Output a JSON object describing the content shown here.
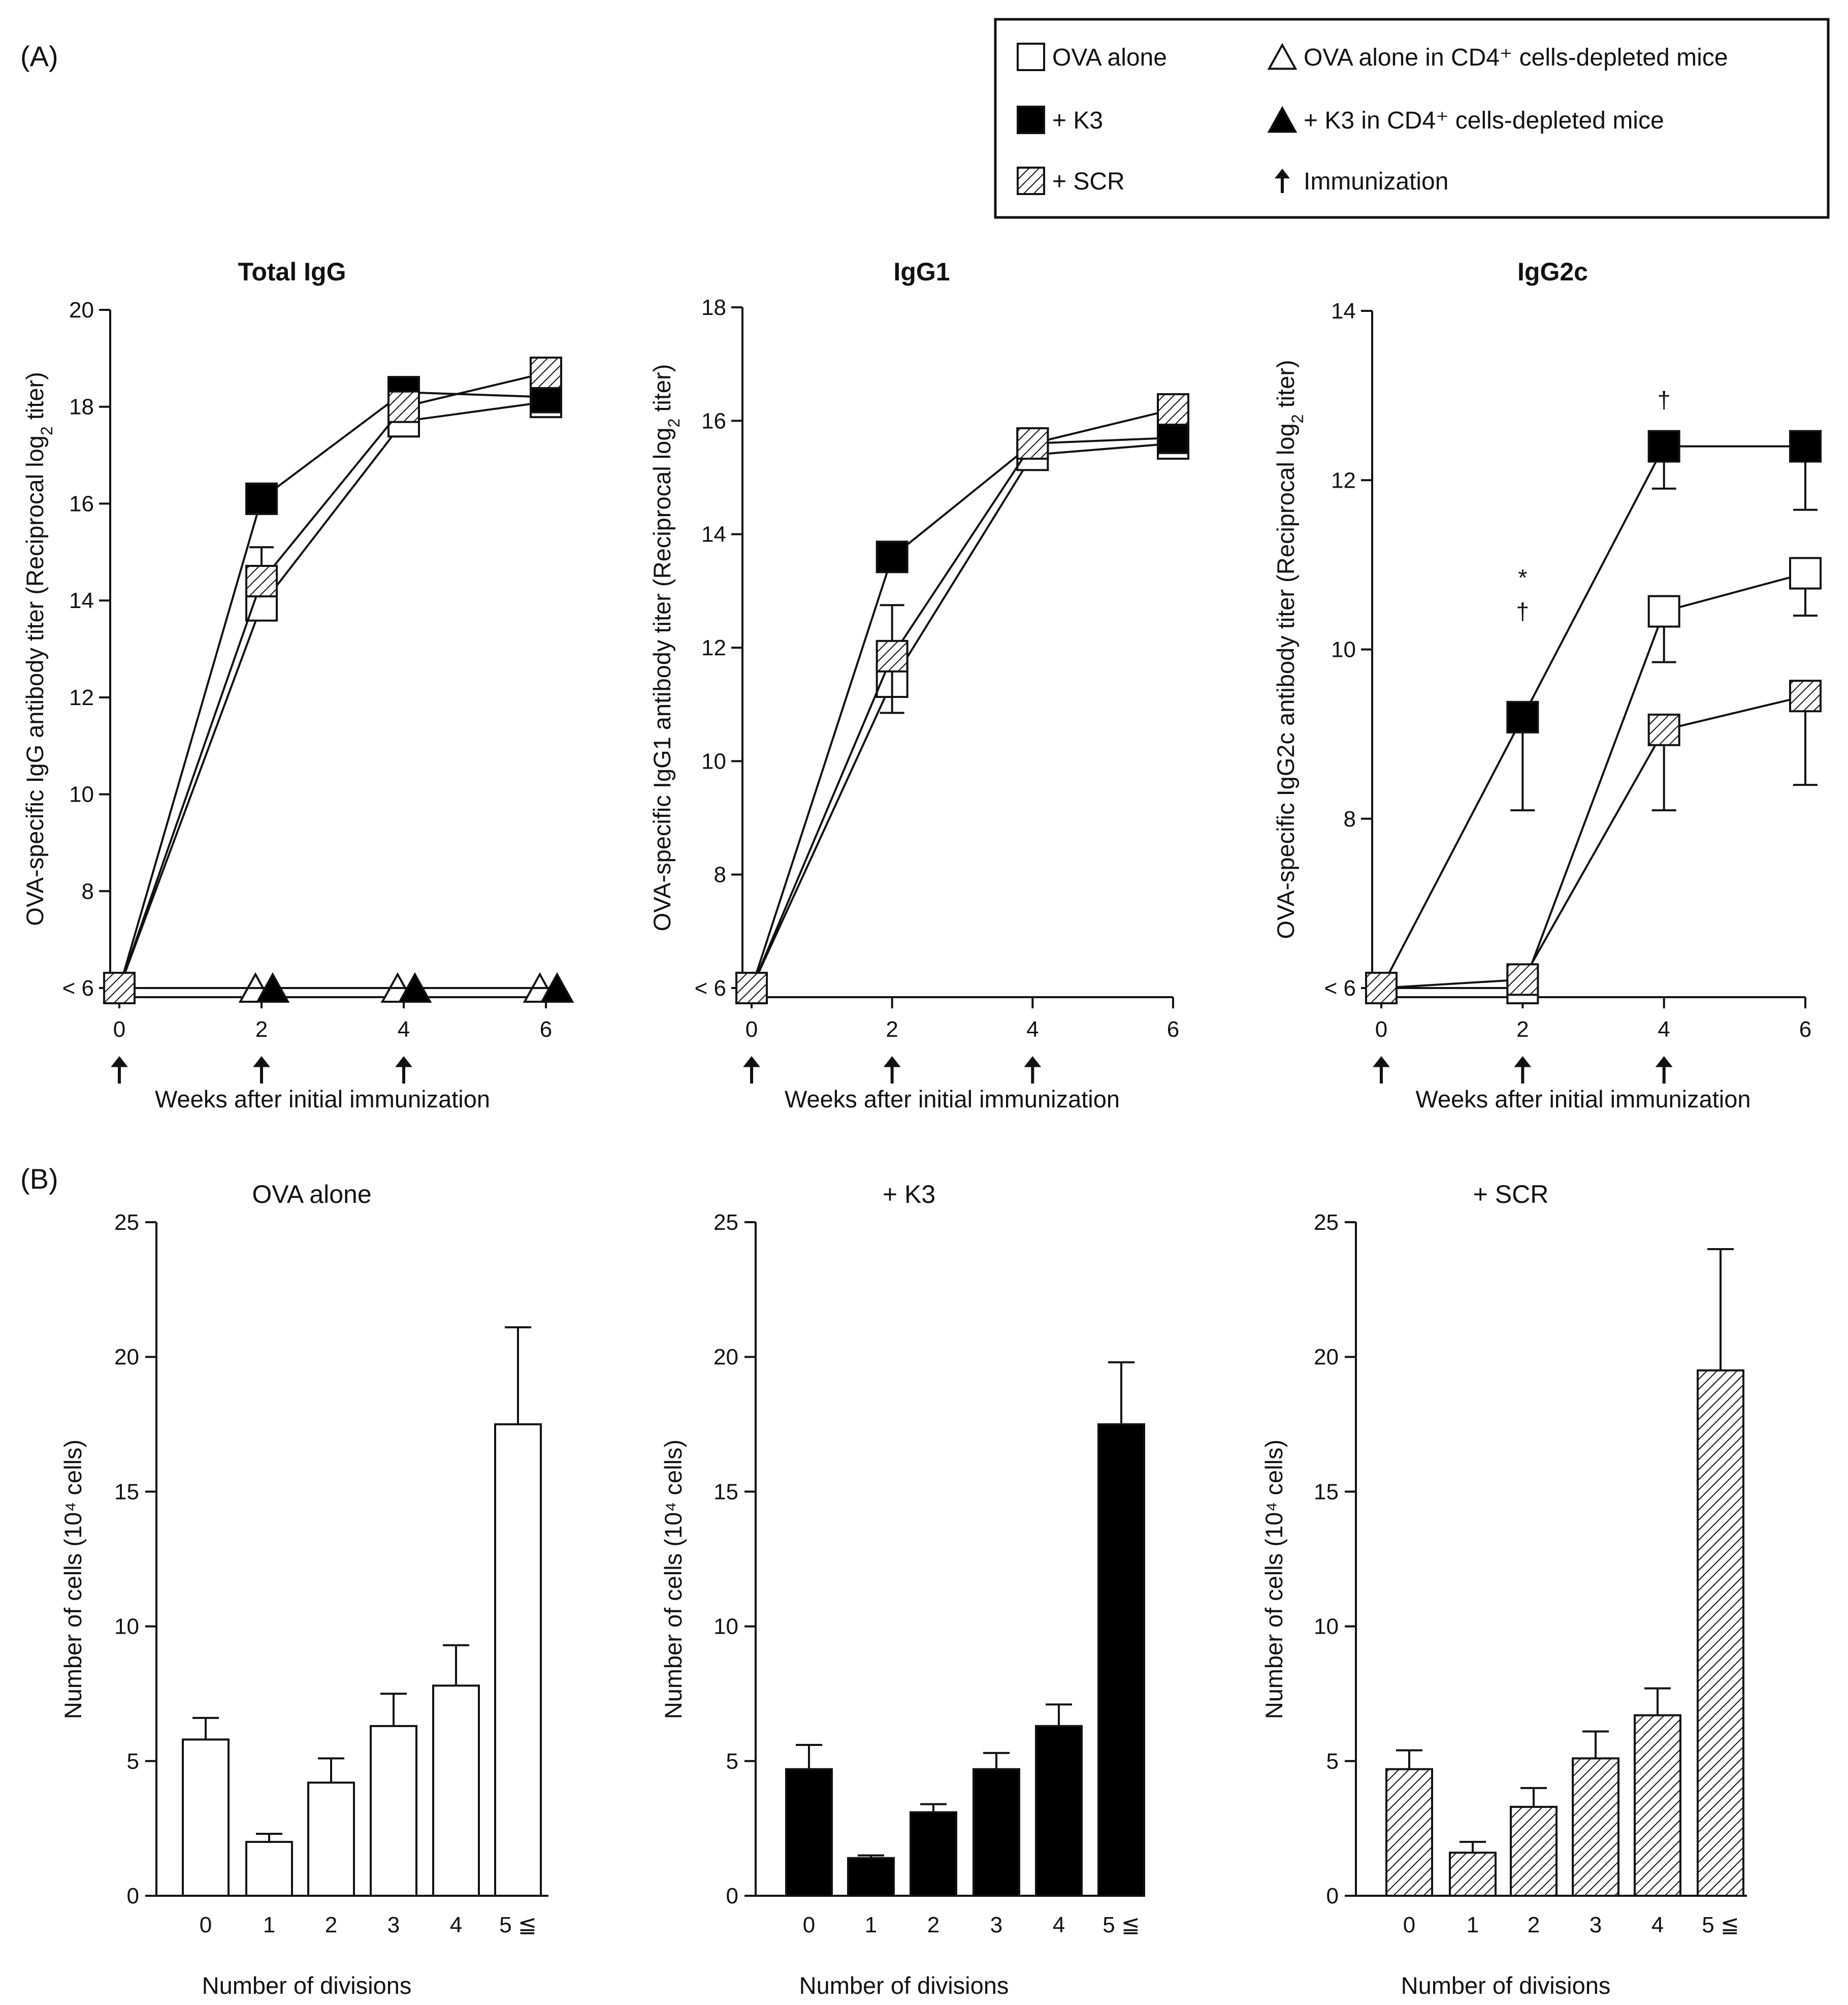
{
  "panel_a": {
    "letter": "(A)"
  },
  "panel_b": {
    "letter": "(B)"
  },
  "legend": {
    "items": [
      {
        "label": "OVA alone",
        "marker": "square-open"
      },
      {
        "label": "+ K3",
        "marker": "square-filled"
      },
      {
        "label": "+ SCR",
        "marker": "square-hatched"
      },
      {
        "label": "OVA alone  in  CD4⁺ cells-depleted  mice",
        "marker": "triangle-open"
      },
      {
        "label": "+ K3  in  CD4⁺ cells-depleted  mice",
        "marker": "triangle-filled"
      },
      {
        "label": "Immunization",
        "marker": "arrow-up"
      }
    ]
  },
  "colors": {
    "filled": "#000000",
    "open": "#ffffff",
    "ink": "#111111"
  },
  "chart_data": [
    {
      "type": "line",
      "title": "Total IgG",
      "xlabel": "Weeks after initial immunization",
      "ylabel": "OVA-specific IgG antibody titer (Reciprocal log2 titer)",
      "x": [
        0,
        2,
        4,
        6
      ],
      "xticks": [
        "0",
        "2",
        "4",
        "6"
      ],
      "xlim": [
        0,
        6
      ],
      "ylim": [
        6,
        20
      ],
      "yticks": [
        "< 6",
        "8",
        "10",
        "12",
        "14",
        "16",
        "18",
        "20"
      ],
      "immunization_weeks": [
        0,
        2,
        4
      ],
      "series": [
        {
          "name": "OVA alone",
          "marker": "square-open",
          "values": [
            6,
            13.9,
            17.7,
            18.1
          ],
          "errors": [
            0,
            1.2,
            0,
            0
          ]
        },
        {
          "name": "+ K3",
          "marker": "square-filled",
          "values": [
            6,
            16.1,
            18.3,
            18.2
          ],
          "errors": [
            0,
            0,
            0,
            0
          ]
        },
        {
          "name": "+ SCR",
          "marker": "square-hatched",
          "values": [
            6,
            14.4,
            18.0,
            18.7
          ],
          "errors": [
            0,
            0,
            0,
            0
          ]
        },
        {
          "name": "OVA alone in CD4+ cells-depleted mice",
          "marker": "triangle-open",
          "values": [
            6,
            6,
            6,
            6
          ],
          "errors": [
            0,
            0,
            0,
            0
          ]
        },
        {
          "name": "+ K3 in CD4+ cells-depleted mice",
          "marker": "triangle-filled",
          "values": [
            6,
            6,
            6,
            6
          ],
          "errors": [
            0,
            0,
            0,
            0
          ]
        }
      ],
      "annotations": []
    },
    {
      "type": "line",
      "title": "IgG1",
      "xlabel": "Weeks after initial immunization",
      "ylabel": "OVA-specific IgG1 antibody titer (Reciprocal log2 titer)",
      "x": [
        0,
        2,
        4,
        6
      ],
      "xticks": [
        "0",
        "2",
        "4",
        "6"
      ],
      "xlim": [
        0,
        6
      ],
      "ylim": [
        6,
        18
      ],
      "yticks": [
        "< 6",
        "8",
        "10",
        "12",
        "14",
        "16",
        "18"
      ],
      "immunization_weeks": [
        0,
        2,
        4
      ],
      "series": [
        {
          "name": "OVA alone",
          "marker": "square-open",
          "values": [
            6,
            11.4,
            15.4,
            15.6
          ],
          "errors": [
            0,
            1.35,
            0,
            0
          ]
        },
        {
          "name": "+ K3",
          "marker": "square-filled",
          "values": [
            6,
            13.6,
            15.6,
            15.7
          ],
          "errors": [
            0,
            0.2,
            0,
            0
          ]
        },
        {
          "name": "+ SCR",
          "marker": "square-hatched",
          "values": [
            6,
            11.85,
            15.6,
            16.2
          ],
          "errors": [
            0,
            1.0,
            0,
            0
          ]
        }
      ],
      "annotations": []
    },
    {
      "type": "line",
      "title": "IgG2c",
      "xlabel": "Weeks after initial immunization",
      "ylabel": "OVA-specific IgG2c antibody titer (Reciprocal log2 titer)",
      "x": [
        0,
        2,
        4,
        6
      ],
      "xticks": [
        "0",
        "2",
        "4",
        "6"
      ],
      "xlim": [
        0,
        6
      ],
      "ylim": [
        6,
        14
      ],
      "yticks": [
        "< 6",
        "8",
        "10",
        "12",
        "14"
      ],
      "immunization_weeks": [
        0,
        2,
        4
      ],
      "series": [
        {
          "name": "OVA alone",
          "marker": "square-open",
          "values": [
            6,
            6.0,
            10.45,
            10.9
          ],
          "errors": [
            0,
            0,
            0.6,
            0.5
          ]
        },
        {
          "name": "+ K3",
          "marker": "square-filled",
          "values": [
            6,
            9.2,
            12.4,
            12.4
          ],
          "errors": [
            0,
            1.1,
            0.5,
            0.75
          ]
        },
        {
          "name": "+ SCR",
          "marker": "square-hatched",
          "values": [
            6,
            6.1,
            9.05,
            9.45
          ],
          "errors": [
            0,
            0,
            0.95,
            1.05
          ]
        }
      ],
      "annotations": [
        {
          "text": "†",
          "x": 2,
          "y": 10.45
        },
        {
          "text": "*",
          "x": 2,
          "y": 10.85
        },
        {
          "text": "†",
          "x": 4,
          "y": 12.95
        }
      ]
    },
    {
      "type": "bar",
      "title": "OVA alone",
      "fill": "open",
      "xlabel": "Number of divisions",
      "ylabel": "Number of cells (10⁴ cells)",
      "categories": [
        "0",
        "1",
        "2",
        "3",
        "4",
        "5 ≦"
      ],
      "values": [
        5.8,
        2.0,
        4.2,
        6.3,
        7.8,
        17.5
      ],
      "errors": [
        0.8,
        0.3,
        0.9,
        1.2,
        1.5,
        3.6
      ],
      "ylim": [
        0,
        25
      ],
      "yticks": [
        "0",
        "5",
        "10",
        "15",
        "20",
        "25"
      ]
    },
    {
      "type": "bar",
      "title": "+ K3",
      "fill": "filled",
      "xlabel": "Number of divisions",
      "ylabel": "Number of cells (10⁴ cells)",
      "categories": [
        "0",
        "1",
        "2",
        "3",
        "4",
        "5 ≦"
      ],
      "values": [
        4.7,
        1.4,
        3.1,
        4.7,
        6.3,
        17.5
      ],
      "errors": [
        0.9,
        0.1,
        0.3,
        0.6,
        0.8,
        2.3
      ],
      "ylim": [
        0,
        25
      ],
      "yticks": [
        "0",
        "5",
        "10",
        "15",
        "20",
        "25"
      ]
    },
    {
      "type": "bar",
      "title": "+ SCR",
      "fill": "hatched",
      "xlabel": "Number of divisions",
      "ylabel": "Number of cells (10⁴ cells)",
      "categories": [
        "0",
        "1",
        "2",
        "3",
        "4",
        "5 ≦"
      ],
      "values": [
        4.7,
        1.6,
        3.3,
        5.1,
        6.7,
        19.5
      ],
      "errors": [
        0.7,
        0.4,
        0.7,
        1.0,
        1.0,
        4.5
      ],
      "ylim": [
        0,
        25
      ],
      "yticks": [
        "0",
        "5",
        "10",
        "15",
        "20",
        "25"
      ]
    }
  ]
}
